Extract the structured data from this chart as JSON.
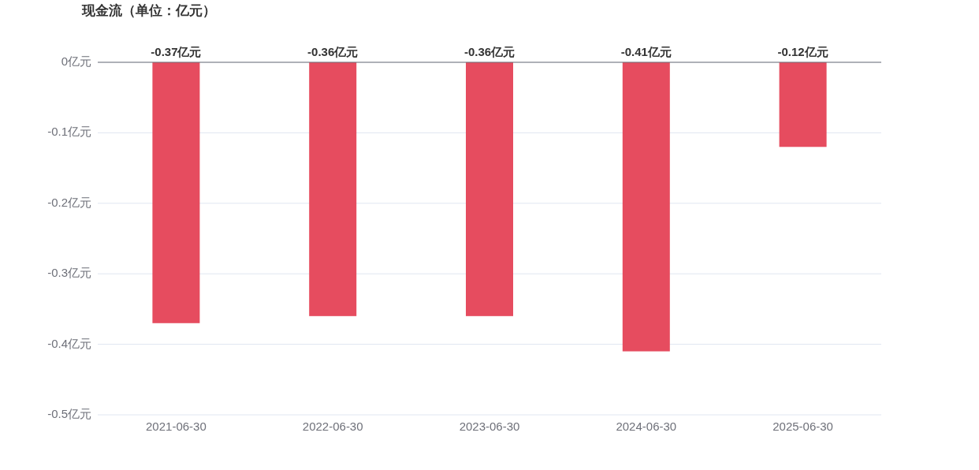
{
  "chart_data": {
    "type": "bar",
    "title": "现金流（单位：亿元）",
    "categories": [
      "2021-06-30",
      "2022-06-30",
      "2023-06-30",
      "2024-06-30",
      "2025-06-30"
    ],
    "values": [
      -0.37,
      -0.36,
      -0.36,
      -0.41,
      -0.12
    ],
    "value_labels": [
      "-0.37亿元",
      "-0.36亿元",
      "-0.36亿元",
      "-0.41亿元",
      "-0.12亿元"
    ],
    "color": "#e64c5f",
    "ylim": [
      -0.5,
      0
    ],
    "yticks": [
      {
        "value": 0,
        "label": "0亿元"
      },
      {
        "value": -0.1,
        "label": "-0.1亿元"
      },
      {
        "value": -0.2,
        "label": "-0.2亿元"
      },
      {
        "value": -0.3,
        "label": "-0.3亿元"
      },
      {
        "value": -0.4,
        "label": "-0.4亿元"
      },
      {
        "value": -0.5,
        "label": "-0.5亿元"
      }
    ],
    "grid": "y"
  }
}
